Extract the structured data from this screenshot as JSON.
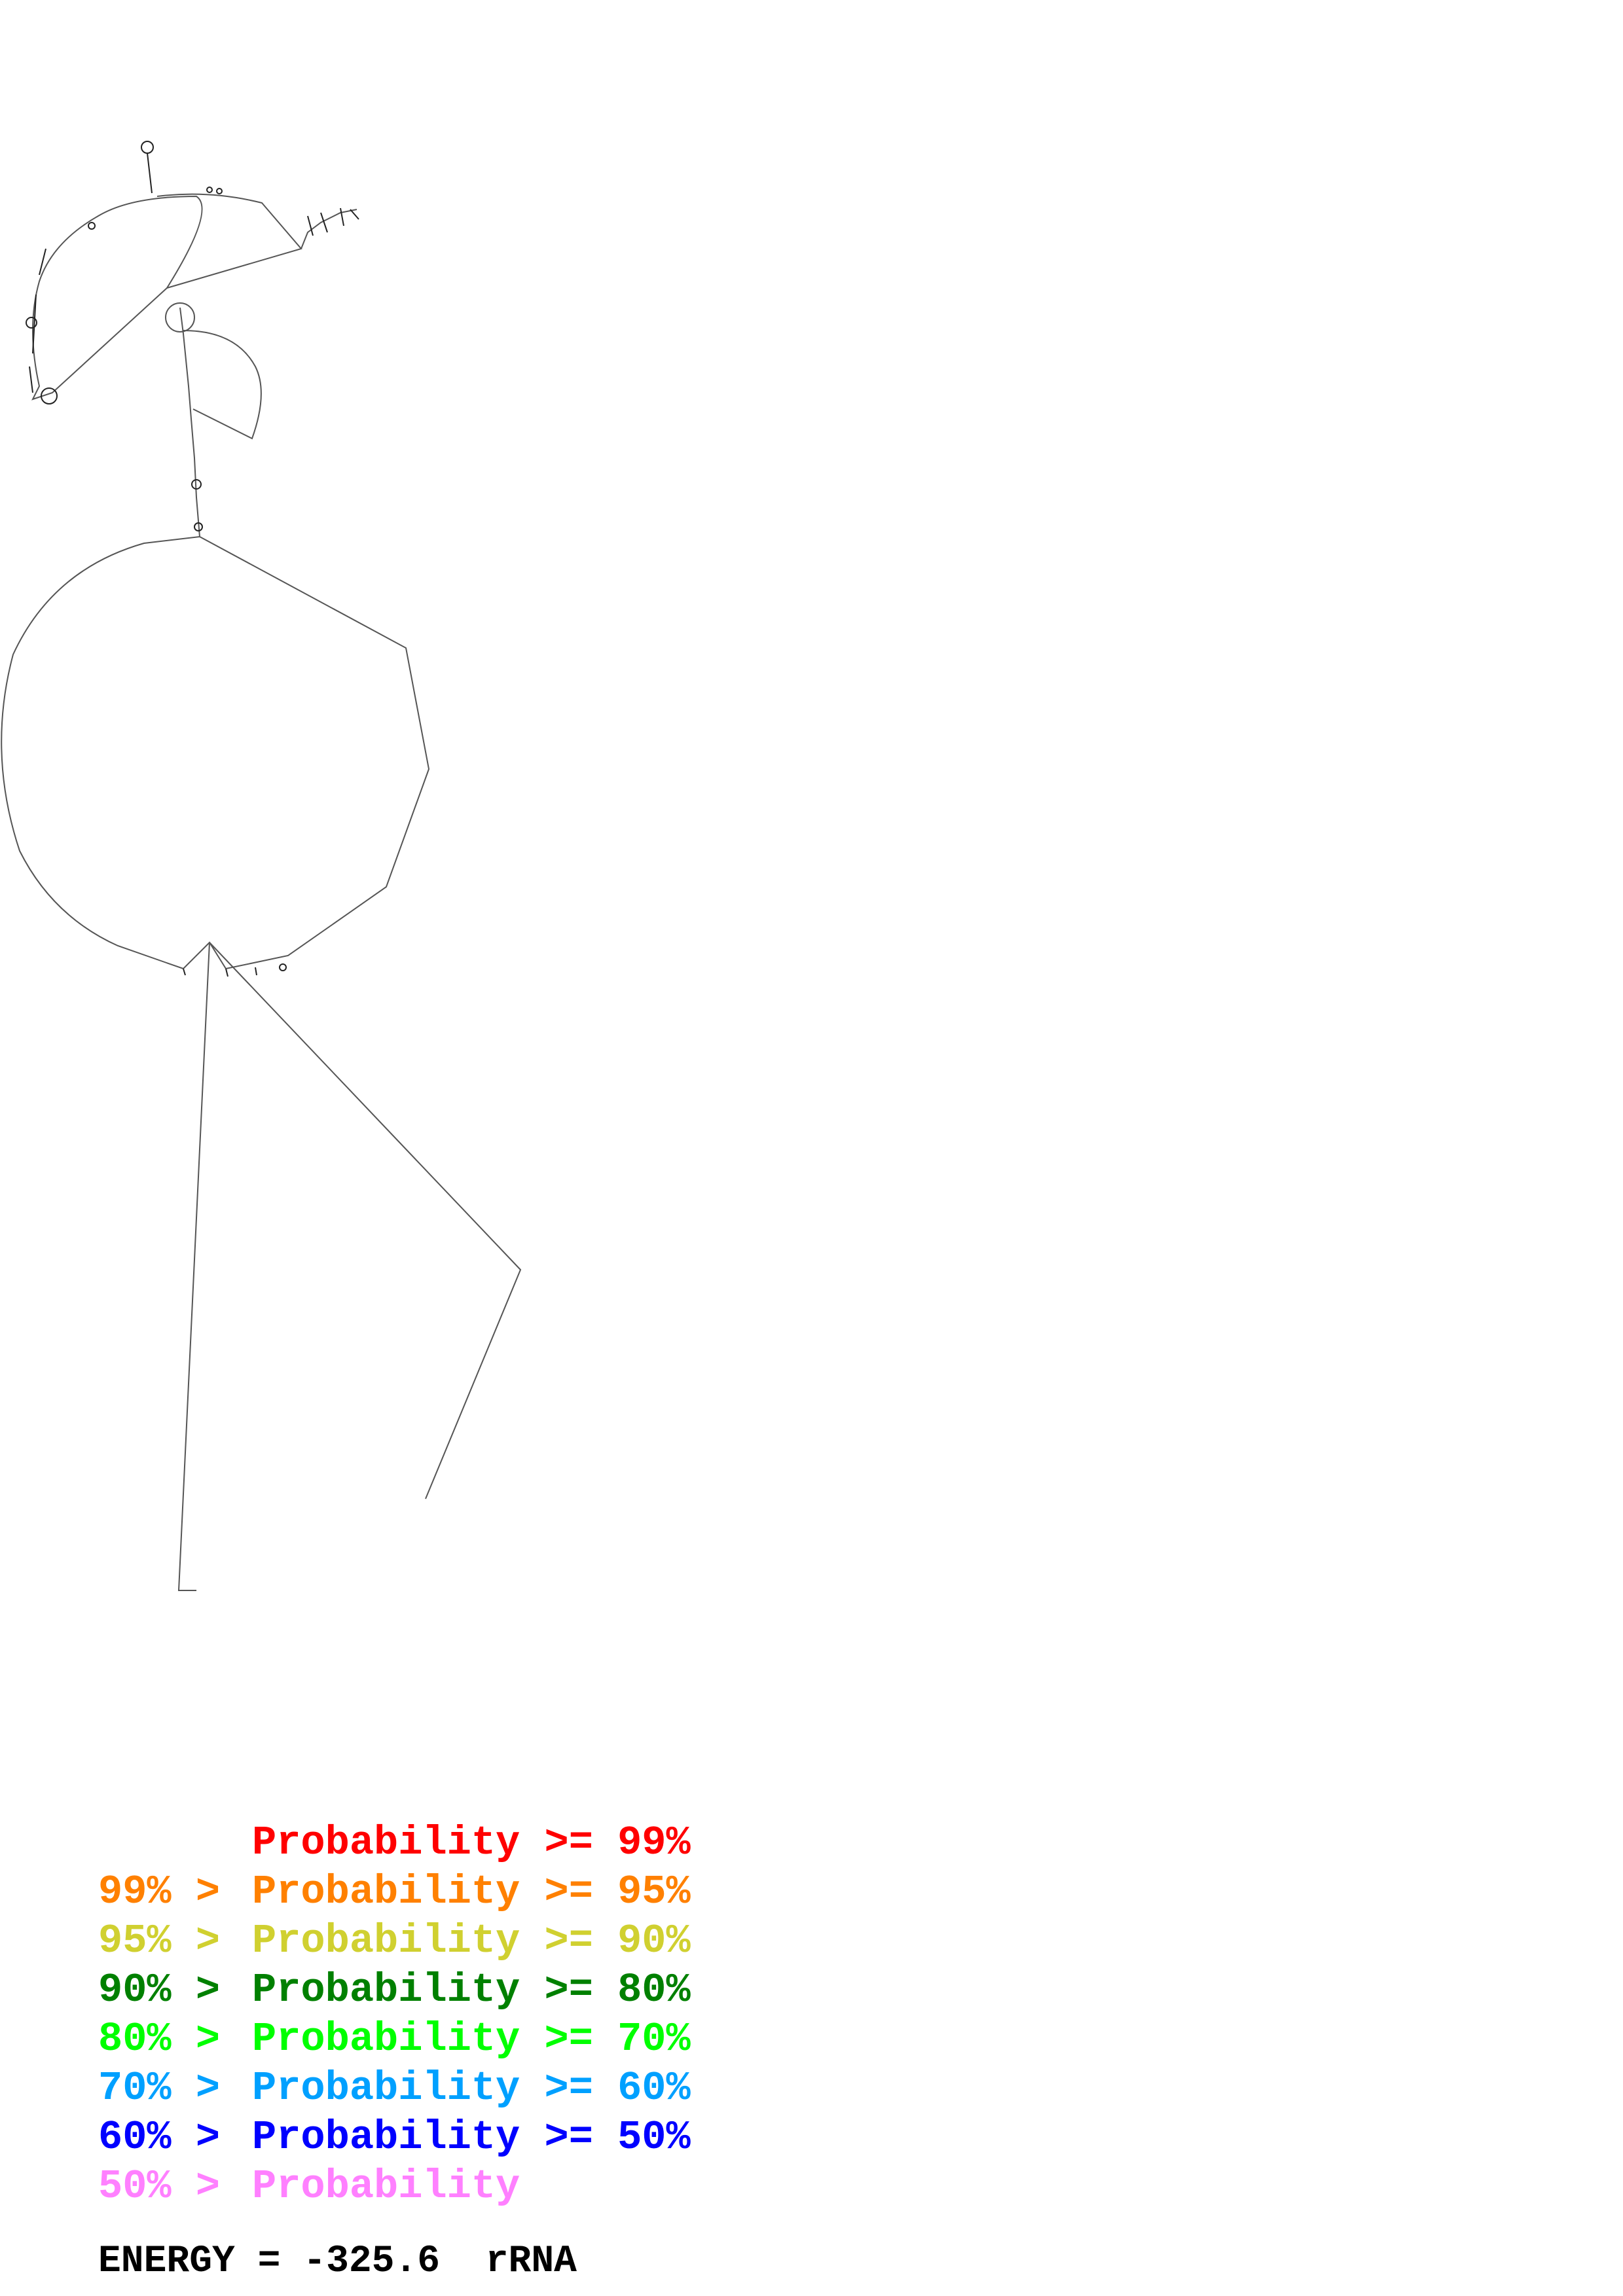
{
  "legend": {
    "items": [
      {
        "prefix": "",
        "label": "Probability",
        "suffix": ">= 99%",
        "color": "#ff0000"
      },
      {
        "prefix": "99% >",
        "label": "Probability",
        "suffix": ">= 95%",
        "color": "#ff8000"
      },
      {
        "prefix": "95% >",
        "label": "Probability",
        "suffix": ">= 90%",
        "color": "#d0d030"
      },
      {
        "prefix": "90% >",
        "label": "Probability",
        "suffix": ">= 80%",
        "color": "#008000"
      },
      {
        "prefix": "80% >",
        "label": "Probability",
        "suffix": ">= 70%",
        "color": "#00ff00"
      },
      {
        "prefix": "70% >",
        "label": "Probability",
        "suffix": ">= 60%",
        "color": "#00a0ff"
      },
      {
        "prefix": "60% >",
        "label": "Probability",
        "suffix": ">= 50%",
        "color": "#0000ff"
      },
      {
        "prefix": "50% >",
        "label": "Probability",
        "suffix": "",
        "color": "#ff80ff"
      }
    ]
  },
  "energy": {
    "label": "ENERGY =",
    "value": "-325.6",
    "type": "rRNA"
  }
}
